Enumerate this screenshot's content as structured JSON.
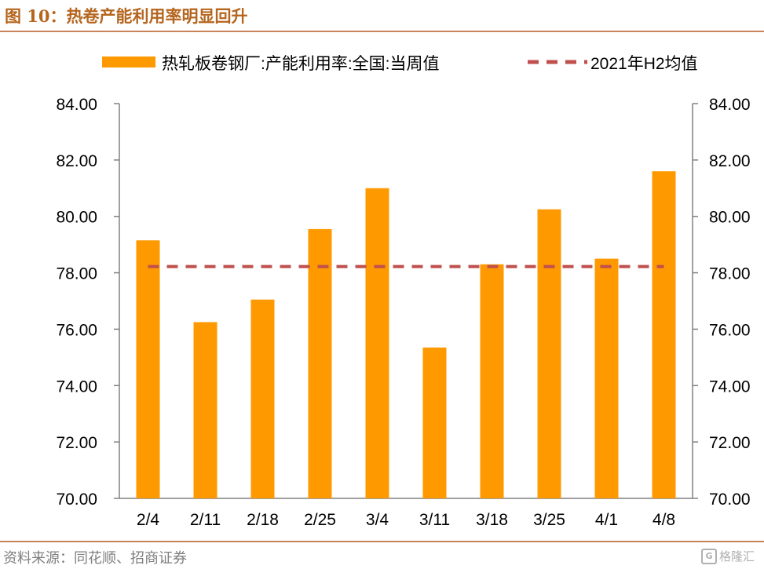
{
  "figure": {
    "title": "图 10：热卷产能利用率明显回升",
    "source": "资料来源：同花顺、招商证券",
    "watermark": "格隆汇"
  },
  "colors": {
    "bar": "#ff9900",
    "avg_line": "#c0504d",
    "axis": "#808080",
    "title": "#b5651d",
    "rule": "#c8835a"
  },
  "chart_data": {
    "type": "bar",
    "categories": [
      "2/4",
      "2/11",
      "2/18",
      "2/25",
      "3/4",
      "3/11",
      "3/18",
      "3/25",
      "4/1",
      "4/8"
    ],
    "series": [
      {
        "name": "热轧板卷钢厂:产能利用率:全国:当周值",
        "type": "bar",
        "values": [
          79.15,
          76.25,
          77.05,
          79.55,
          81.0,
          75.35,
          78.3,
          80.25,
          78.5,
          81.6
        ]
      },
      {
        "name": "2021年H2均值",
        "type": "line",
        "style": "dashed",
        "values": [
          78.22,
          78.22,
          78.22,
          78.22,
          78.22,
          78.22,
          78.22,
          78.22,
          78.22,
          78.22
        ]
      }
    ],
    "ylim": [
      70,
      84
    ],
    "yticks": [
      "84.00",
      "82.00",
      "80.00",
      "78.00",
      "76.00",
      "74.00",
      "72.00",
      "70.00"
    ],
    "y_tick_values": [
      84,
      82,
      80,
      78,
      76,
      74,
      72,
      70
    ],
    "secondary_axis": true,
    "legend_position": "top",
    "grid": false,
    "xlabel": "",
    "ylabel": ""
  }
}
